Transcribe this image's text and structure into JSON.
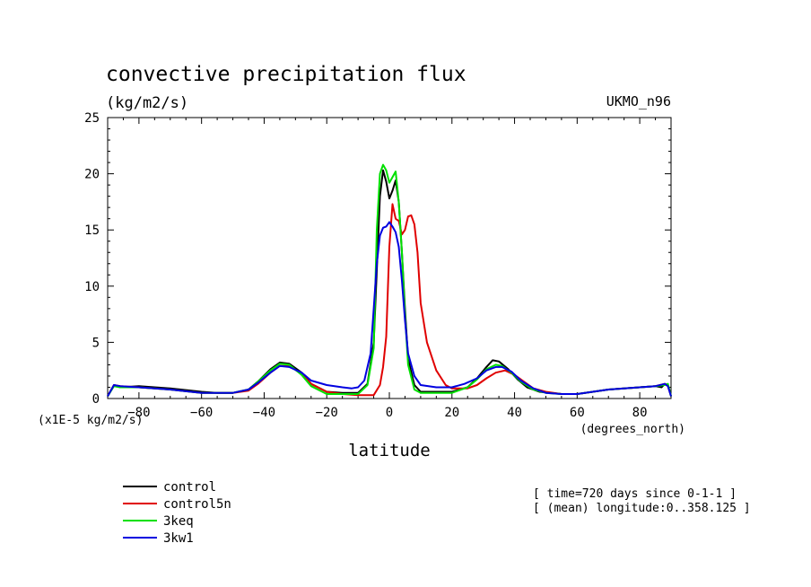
{
  "chart_data": {
    "type": "line",
    "title": "convective precipitation flux",
    "subtitle": "(kg/m2/s)",
    "model_label": "UKMO_n96",
    "xlabel": "latitude",
    "x_units": "(degrees_north)",
    "y_units": "(x1E-5 kg/m2/s)",
    "xlim": [
      -90,
      90
    ],
    "ylim": [
      0,
      25
    ],
    "x_ticks": [
      -80,
      -60,
      -40,
      -20,
      0,
      20,
      40,
      60,
      80
    ],
    "y_ticks": [
      0,
      5,
      10,
      15,
      20,
      25
    ],
    "grid": false,
    "legend_position": "bottom-left",
    "info_lines": [
      "[ time=720 days since 0-1-1 ]",
      "[ (mean) longitude:0..358.125 ]"
    ],
    "series": [
      {
        "name": "control",
        "color": "#000000",
        "points": [
          [
            -90,
            0.2
          ],
          [
            -88,
            1.2
          ],
          [
            -86,
            1.0
          ],
          [
            -80,
            1.1
          ],
          [
            -70,
            0.9
          ],
          [
            -60,
            0.6
          ],
          [
            -55,
            0.5
          ],
          [
            -50,
            0.5
          ],
          [
            -45,
            0.8
          ],
          [
            -42,
            1.5
          ],
          [
            -38,
            2.6
          ],
          [
            -35,
            3.2
          ],
          [
            -32,
            3.1
          ],
          [
            -28,
            2.3
          ],
          [
            -25,
            1.3
          ],
          [
            -20,
            0.6
          ],
          [
            -15,
            0.5
          ],
          [
            -10,
            0.5
          ],
          [
            -7,
            1.3
          ],
          [
            -5,
            5.0
          ],
          [
            -3,
            18.0
          ],
          [
            -2,
            20.3
          ],
          [
            -1,
            19.3
          ],
          [
            0,
            17.8
          ],
          [
            1,
            18.5
          ],
          [
            2,
            19.4
          ],
          [
            3,
            17.5
          ],
          [
            4,
            13.0
          ],
          [
            5,
            8.0
          ],
          [
            6,
            3.5
          ],
          [
            8,
            1.2
          ],
          [
            10,
            0.6
          ],
          [
            20,
            0.6
          ],
          [
            25,
            1.0
          ],
          [
            28,
            1.8
          ],
          [
            31,
            2.8
          ],
          [
            33,
            3.4
          ],
          [
            35,
            3.3
          ],
          [
            38,
            2.6
          ],
          [
            41,
            1.7
          ],
          [
            44,
            1.0
          ],
          [
            48,
            0.6
          ],
          [
            55,
            0.4
          ],
          [
            60,
            0.4
          ],
          [
            65,
            0.6
          ],
          [
            70,
            0.8
          ],
          [
            80,
            1.0
          ],
          [
            85,
            1.1
          ],
          [
            87,
            1.0
          ],
          [
            88,
            1.3
          ],
          [
            89,
            1.2
          ],
          [
            90,
            0.2
          ]
        ]
      },
      {
        "name": "control5n",
        "color": "#e00000",
        "points": [
          [
            -90,
            0.2
          ],
          [
            -88,
            1.2
          ],
          [
            -86,
            1.1
          ],
          [
            -80,
            1.0
          ],
          [
            -70,
            0.8
          ],
          [
            -60,
            0.5
          ],
          [
            -55,
            0.5
          ],
          [
            -50,
            0.5
          ],
          [
            -45,
            0.7
          ],
          [
            -42,
            1.3
          ],
          [
            -38,
            2.3
          ],
          [
            -35,
            2.9
          ],
          [
            -32,
            2.9
          ],
          [
            -28,
            2.2
          ],
          [
            -25,
            1.3
          ],
          [
            -20,
            0.6
          ],
          [
            -15,
            0.4
          ],
          [
            -10,
            0.3
          ],
          [
            -5,
            0.3
          ],
          [
            -3,
            1.2
          ],
          [
            -2,
            2.8
          ],
          [
            -1,
            5.5
          ],
          [
            0,
            13.5
          ],
          [
            1,
            17.3
          ],
          [
            2,
            16.0
          ],
          [
            3,
            15.8
          ],
          [
            4,
            14.6
          ],
          [
            5,
            15.0
          ],
          [
            6,
            16.2
          ],
          [
            7,
            16.3
          ],
          [
            8,
            15.5
          ],
          [
            9,
            13.0
          ],
          [
            10,
            8.5
          ],
          [
            12,
            5.0
          ],
          [
            15,
            2.5
          ],
          [
            18,
            1.2
          ],
          [
            20,
            0.9
          ],
          [
            25,
            0.9
          ],
          [
            28,
            1.2
          ],
          [
            31,
            1.8
          ],
          [
            34,
            2.3
          ],
          [
            37,
            2.5
          ],
          [
            40,
            2.1
          ],
          [
            43,
            1.5
          ],
          [
            46,
            0.9
          ],
          [
            50,
            0.6
          ],
          [
            55,
            0.4
          ],
          [
            60,
            0.4
          ],
          [
            65,
            0.6
          ],
          [
            70,
            0.8
          ],
          [
            80,
            1.0
          ],
          [
            85,
            1.1
          ],
          [
            88,
            1.3
          ],
          [
            89,
            1.1
          ],
          [
            90,
            0.2
          ]
        ]
      },
      {
        "name": "3keq",
        "color": "#00e000",
        "points": [
          [
            -90,
            0.2
          ],
          [
            -88,
            1.1
          ],
          [
            -86,
            1.0
          ],
          [
            -80,
            1.0
          ],
          [
            -70,
            0.8
          ],
          [
            -60,
            0.5
          ],
          [
            -55,
            0.5
          ],
          [
            -50,
            0.5
          ],
          [
            -45,
            0.8
          ],
          [
            -42,
            1.5
          ],
          [
            -38,
            2.5
          ],
          [
            -35,
            3.1
          ],
          [
            -32,
            3.0
          ],
          [
            -28,
            2.1
          ],
          [
            -25,
            1.1
          ],
          [
            -20,
            0.4
          ],
          [
            -15,
            0.4
          ],
          [
            -10,
            0.4
          ],
          [
            -7,
            1.2
          ],
          [
            -5,
            4.5
          ],
          [
            -4,
            15.0
          ],
          [
            -3,
            20.0
          ],
          [
            -2,
            20.8
          ],
          [
            -1,
            20.3
          ],
          [
            0,
            19.2
          ],
          [
            1,
            19.7
          ],
          [
            2,
            20.2
          ],
          [
            3,
            17.5
          ],
          [
            4,
            13.0
          ],
          [
            5,
            7.5
          ],
          [
            6,
            3.0
          ],
          [
            8,
            0.8
          ],
          [
            10,
            0.5
          ],
          [
            20,
            0.5
          ],
          [
            25,
            1.0
          ],
          [
            28,
            1.7
          ],
          [
            31,
            2.6
          ],
          [
            34,
            3.0
          ],
          [
            36,
            2.9
          ],
          [
            39,
            2.3
          ],
          [
            42,
            1.5
          ],
          [
            46,
            0.8
          ],
          [
            50,
            0.5
          ],
          [
            55,
            0.4
          ],
          [
            60,
            0.4
          ],
          [
            65,
            0.6
          ],
          [
            70,
            0.8
          ],
          [
            80,
            1.0
          ],
          [
            85,
            1.1
          ],
          [
            88,
            1.2
          ],
          [
            89,
            1.3
          ],
          [
            90,
            0.2
          ]
        ]
      },
      {
        "name": "3kw1",
        "color": "#0000e0",
        "points": [
          [
            -90,
            0.2
          ],
          [
            -88,
            1.2
          ],
          [
            -86,
            1.1
          ],
          [
            -80,
            1.0
          ],
          [
            -70,
            0.8
          ],
          [
            -60,
            0.5
          ],
          [
            -55,
            0.5
          ],
          [
            -50,
            0.5
          ],
          [
            -45,
            0.8
          ],
          [
            -42,
            1.4
          ],
          [
            -38,
            2.3
          ],
          [
            -35,
            2.9
          ],
          [
            -32,
            2.8
          ],
          [
            -28,
            2.3
          ],
          [
            -25,
            1.6
          ],
          [
            -20,
            1.2
          ],
          [
            -15,
            1.0
          ],
          [
            -12,
            0.9
          ],
          [
            -10,
            1.0
          ],
          [
            -8,
            1.6
          ],
          [
            -6,
            4.0
          ],
          [
            -5,
            8.0
          ],
          [
            -4,
            12.0
          ],
          [
            -3,
            14.5
          ],
          [
            -2,
            15.2
          ],
          [
            -1,
            15.3
          ],
          [
            0,
            15.7
          ],
          [
            1,
            15.3
          ],
          [
            2,
            14.8
          ],
          [
            3,
            13.5
          ],
          [
            4,
            10.5
          ],
          [
            5,
            7.0
          ],
          [
            6,
            4.0
          ],
          [
            8,
            2.0
          ],
          [
            10,
            1.2
          ],
          [
            15,
            1.0
          ],
          [
            20,
            1.0
          ],
          [
            24,
            1.3
          ],
          [
            28,
            1.8
          ],
          [
            31,
            2.5
          ],
          [
            34,
            2.8
          ],
          [
            36,
            2.8
          ],
          [
            39,
            2.4
          ],
          [
            42,
            1.6
          ],
          [
            46,
            0.9
          ],
          [
            50,
            0.5
          ],
          [
            55,
            0.4
          ],
          [
            60,
            0.4
          ],
          [
            65,
            0.6
          ],
          [
            70,
            0.8
          ],
          [
            80,
            1.0
          ],
          [
            85,
            1.1
          ],
          [
            88,
            1.3
          ],
          [
            89,
            1.1
          ],
          [
            90,
            0.2
          ]
        ]
      }
    ]
  }
}
